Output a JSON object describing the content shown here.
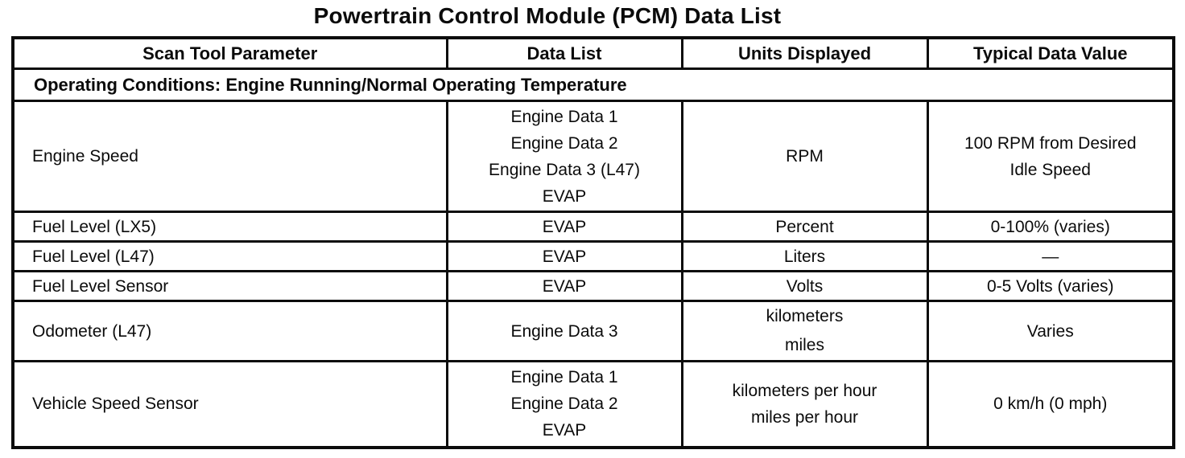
{
  "page": {
    "title": "Powertrain Control Module (PCM) Data List"
  },
  "table": {
    "headers": [
      "Scan Tool Parameter",
      "Data List",
      "Units Displayed",
      "Typical Data Value"
    ],
    "section_header": "Operating Conditions: Engine Running/Normal Operating Temperature",
    "rows": [
      {
        "parameter": "Engine Speed",
        "data_list": [
          "Engine Data 1",
          "Engine Data 2",
          "Engine Data 3 (L47)",
          "EVAP"
        ],
        "units": [
          "RPM"
        ],
        "typical_value": "100 RPM from Desired Idle Speed"
      },
      {
        "parameter": "Fuel Level (LX5)",
        "data_list": [
          "EVAP"
        ],
        "units": [
          "Percent"
        ],
        "typical_value": "0-100% (varies)"
      },
      {
        "parameter": "Fuel Level (L47)",
        "data_list": [
          "EVAP"
        ],
        "units": [
          "Liters"
        ],
        "typical_value": "—"
      },
      {
        "parameter": "Fuel Level Sensor",
        "data_list": [
          "EVAP"
        ],
        "units": [
          "Volts"
        ],
        "typical_value": "0-5 Volts (varies)"
      },
      {
        "parameter": "Odometer (L47)",
        "data_list": [
          "Engine Data 3"
        ],
        "units": [
          "kilometers",
          "miles"
        ],
        "typical_value": "Varies"
      },
      {
        "parameter": "Vehicle Speed Sensor",
        "data_list": [
          "Engine Data 1",
          "Engine Data 2",
          "EVAP"
        ],
        "units": [
          "kilometers per hour",
          "miles per hour"
        ],
        "typical_value": "0 km/h (0 mph)"
      }
    ]
  }
}
